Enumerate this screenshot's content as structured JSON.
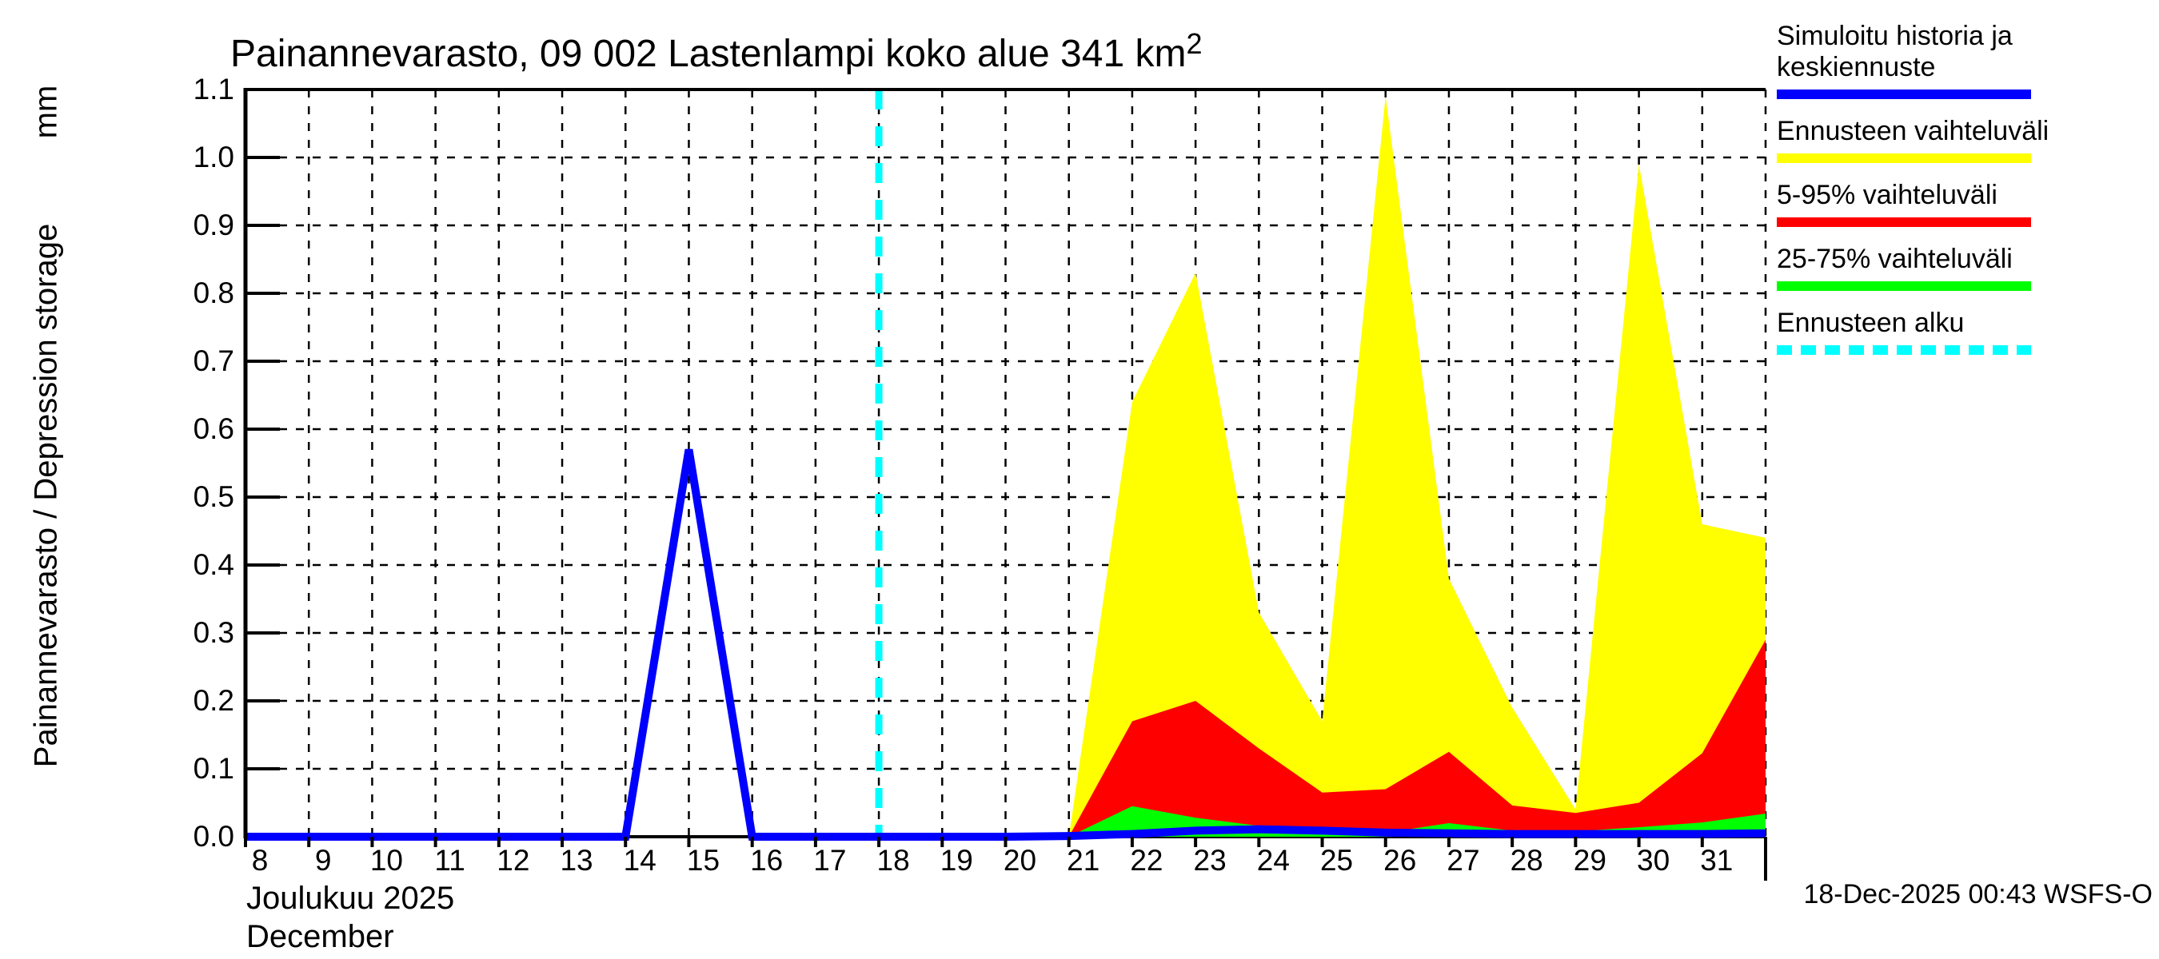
{
  "title": {
    "text": "Painannevarasto, 09 002 Lastenlampi koko alue 341 km",
    "exponent": "2"
  },
  "y_axis": {
    "label": "Painannevarasto / Depression storage",
    "unit": "mm",
    "tick_labels": [
      "0.0",
      "0.1",
      "0.2",
      "0.3",
      "0.4",
      "0.5",
      "0.6",
      "0.7",
      "0.8",
      "0.9",
      "1.0",
      "1.1"
    ],
    "min": 0.0,
    "max": 1.1
  },
  "x_axis": {
    "month_fi": "Joulukuu 2025",
    "month_en": "December",
    "tick_labels": [
      "8",
      "9",
      "10",
      "11",
      "12",
      "13",
      "14",
      "15",
      "16",
      "17",
      "18",
      "19",
      "20",
      "21",
      "22",
      "23",
      "24",
      "25",
      "26",
      "27",
      "28",
      "29",
      "30",
      "31"
    ],
    "domain_days": [
      8,
      32
    ]
  },
  "timestamp": "18-Dec-2025 00:43 WSFS-O",
  "legend": {
    "items": [
      {
        "label": "Simuloitu historia ja keskiennuste",
        "color": "#0000ff",
        "style": "solid"
      },
      {
        "label": "Ennusteen vaihteluväli",
        "color": "#ffff00",
        "style": "solid"
      },
      {
        "label": "5-95% vaihteluväli",
        "color": "#ff0000",
        "style": "solid"
      },
      {
        "label": "25-75% vaihteluväli",
        "color": "#00ff00",
        "style": "solid"
      },
      {
        "label": "Ennusteen alku",
        "color": "#00ffff",
        "style": "dashed"
      }
    ]
  },
  "chart_data": {
    "type": "area",
    "title": "Painannevarasto, 09 002 Lastenlampi koko alue 341 km²",
    "xlabel": "Joulukuu 2025 / December (day of month)",
    "ylabel": "Painannevarasto / Depression storage (mm)",
    "x_domain": [
      8,
      32
    ],
    "y_domain": [
      0,
      1.1
    ],
    "grid": true,
    "forecast_start_day": 18,
    "colors": {
      "history_mean": "#0000ff",
      "range_full": "#ffff00",
      "range_5_95": "#ff0000",
      "range_25_75": "#00ff00",
      "forecast_start": "#00ffff"
    },
    "series": [
      {
        "name": "Ennusteen vaihteluväli (max)",
        "render": "area",
        "color": "#ffff00",
        "points": [
          [
            21,
            0.0
          ],
          [
            22,
            0.64
          ],
          [
            23,
            0.83
          ],
          [
            24,
            0.33
          ],
          [
            25,
            0.17
          ],
          [
            26,
            1.09
          ],
          [
            27,
            0.38
          ],
          [
            28,
            0.19
          ],
          [
            29,
            0.04
          ],
          [
            30,
            0.99
          ],
          [
            31,
            0.46
          ],
          [
            32,
            0.44
          ]
        ]
      },
      {
        "name": "5-95% vaihteluväli (95th percentile)",
        "render": "area",
        "color": "#ff0000",
        "points": [
          [
            21,
            0.0
          ],
          [
            22,
            0.17
          ],
          [
            23,
            0.2
          ],
          [
            24,
            0.13
          ],
          [
            25,
            0.065
          ],
          [
            26,
            0.07
          ],
          [
            27,
            0.125
          ],
          [
            28,
            0.046
          ],
          [
            29,
            0.035
          ],
          [
            30,
            0.05
          ],
          [
            31,
            0.123
          ],
          [
            32,
            0.29
          ]
        ]
      },
      {
        "name": "25-75% vaihteluväli (75th percentile)",
        "render": "area",
        "color": "#00ff00",
        "points": [
          [
            21,
            0.0
          ],
          [
            22,
            0.045
          ],
          [
            23,
            0.028
          ],
          [
            24,
            0.016
          ],
          [
            25,
            0.009
          ],
          [
            26,
            0.006
          ],
          [
            27,
            0.02
          ],
          [
            28,
            0.009
          ],
          [
            29,
            0.008
          ],
          [
            30,
            0.014
          ],
          [
            31,
            0.021
          ],
          [
            32,
            0.034
          ]
        ]
      },
      {
        "name": "Simuloitu historia ja keskiennuste",
        "render": "line",
        "color": "#0000ff",
        "points": [
          [
            8,
            0
          ],
          [
            9,
            0
          ],
          [
            10,
            0
          ],
          [
            11,
            0
          ],
          [
            12,
            0
          ],
          [
            13,
            0
          ],
          [
            14,
            0
          ],
          [
            15,
            0.57
          ],
          [
            16,
            0
          ],
          [
            17,
            0
          ],
          [
            18,
            0
          ],
          [
            19,
            0
          ],
          [
            20,
            0
          ],
          [
            21,
            0.001
          ],
          [
            22,
            0.004
          ],
          [
            23,
            0.009
          ],
          [
            24,
            0.011
          ],
          [
            25,
            0.009
          ],
          [
            26,
            0.006
          ],
          [
            27,
            0.005
          ],
          [
            28,
            0.004
          ],
          [
            29,
            0.004
          ],
          [
            30,
            0.004
          ],
          [
            31,
            0.004
          ],
          [
            32,
            0.005
          ]
        ]
      }
    ]
  }
}
